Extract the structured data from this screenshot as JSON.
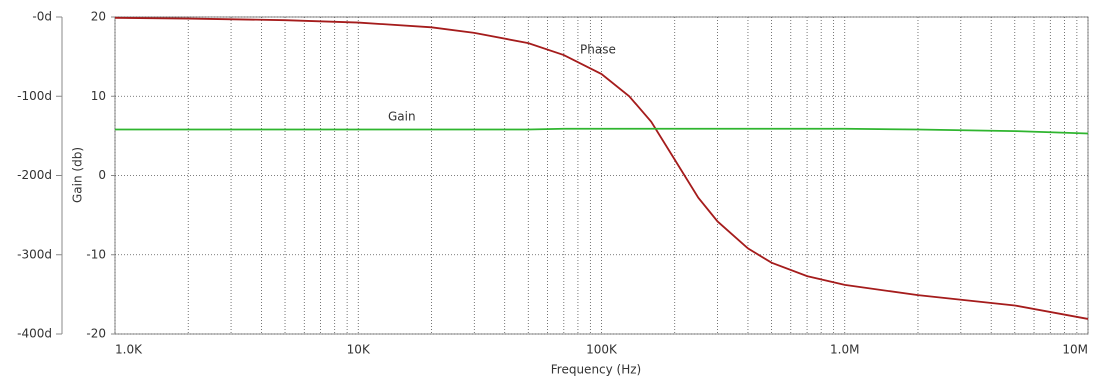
{
  "chart_data": {
    "type": "line",
    "x_label": "Frequency (Hz)",
    "y_label": "Gain (db)",
    "x": [
      1000,
      2000,
      5000,
      10000,
      20000,
      30000,
      50000,
      70000,
      100000,
      130000,
      160000,
      200000,
      250000,
      300000,
      400000,
      500000,
      700000,
      1000000,
      2000000,
      5000000,
      10000000
    ],
    "series": [
      {
        "name": "Phase",
        "color": "#a51c1c",
        "axis": "y2",
        "values": [
          -1,
          -2,
          -4,
          -7,
          -13,
          -20,
          -33,
          -48,
          -72,
          -100,
          -132,
          -180,
          -228,
          -258,
          -292,
          -310,
          -327,
          -338,
          -351,
          -364,
          -381
        ]
      },
      {
        "name": "Gain",
        "color": "#2fb52f",
        "values": [
          5.8,
          5.8,
          5.8,
          5.8,
          5.8,
          5.8,
          5.8,
          5.9,
          5.9,
          5.9,
          5.9,
          5.9,
          5.9,
          5.9,
          5.9,
          5.9,
          5.9,
          5.9,
          5.8,
          5.6,
          5.3
        ]
      }
    ],
    "xscale": "log",
    "xlim": [
      1000,
      10000000
    ],
    "xticks": [
      {
        "value": 1000,
        "label": "1.0K"
      },
      {
        "value": 10000,
        "label": "10K"
      },
      {
        "value": 100000,
        "label": "100K"
      },
      {
        "value": 1000000,
        "label": "1.0M"
      },
      {
        "value": 10000000,
        "label": "10M"
      }
    ],
    "ylim": [
      -20,
      20
    ],
    "yticks": [
      20,
      10,
      0,
      -10,
      -20
    ],
    "y2lim": [
      -400,
      0
    ],
    "y2ticks": [
      {
        "value": 0,
        "label": "-0d"
      },
      {
        "value": -100,
        "label": "-100d"
      },
      {
        "value": -200,
        "label": "-200d"
      },
      {
        "value": -300,
        "label": "-300d"
      },
      {
        "value": -400,
        "label": "-400d"
      }
    ],
    "grid": true,
    "minor_grid": true
  }
}
